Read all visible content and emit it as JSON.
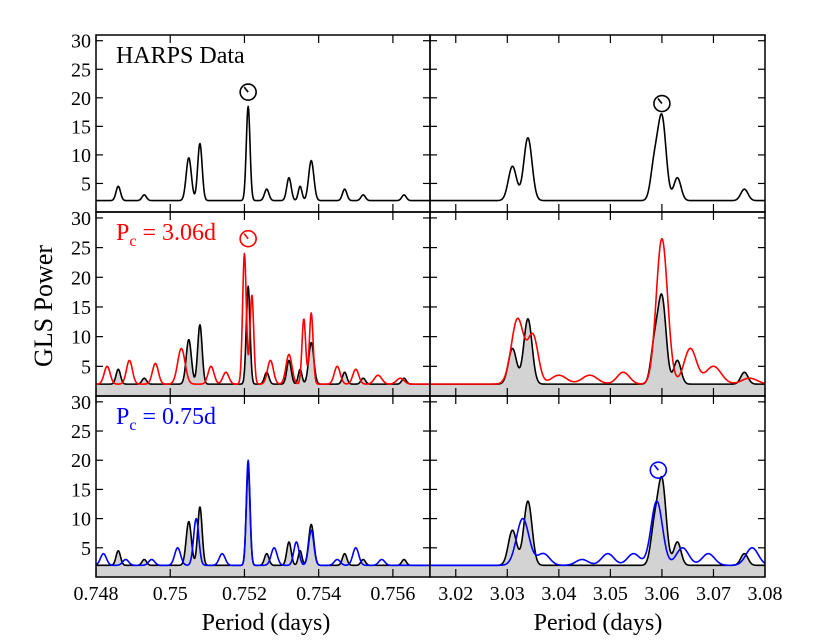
{
  "figure": {
    "ylabel": "GLS Power",
    "xlabel_left": "Period (days)",
    "xlabel_right": "Period (days)"
  },
  "colors": {
    "data": "#000000",
    "sim_3_06": "#ff0000",
    "sim_0_75": "#0000ff",
    "fill": "#d3d3d3"
  },
  "chart_data": [
    {
      "type": "line",
      "id": "top-left",
      "row": 0,
      "col": 0,
      "title": "HARPS Data",
      "xlim": [
        0.748,
        0.757
      ],
      "ylim": [
        0,
        31
      ],
      "yticks": [
        5,
        10,
        15,
        20,
        25,
        30
      ],
      "xticks": [
        0.748,
        0.75,
        0.752,
        0.754,
        0.756
      ],
      "xtick_labels": [
        "0.748",
        "0.75",
        "0.752",
        "0.754",
        "0.756"
      ],
      "show_xtick_labels": false,
      "series": [
        {
          "name": "HARPS Data",
          "color": "#000000",
          "fill": false,
          "peaks": [
            [
              0.7486,
              4.5,
              6e-05
            ],
            [
              0.7493,
              3,
              6e-05
            ],
            [
              0.7505,
              9.5,
              7e-05
            ],
            [
              0.7508,
              12,
              6e-05
            ],
            [
              0.7521,
              18.5,
              5e-05
            ],
            [
              0.7526,
              4,
              6e-05
            ],
            [
              0.7532,
              6,
              6e-05
            ],
            [
              0.7535,
              4.5,
              5e-05
            ],
            [
              0.7538,
              9,
              7e-05
            ],
            [
              0.7547,
              4,
              6e-05
            ],
            [
              0.7552,
              3,
              6e-05
            ],
            [
              0.7563,
              3,
              6e-05
            ]
          ]
        }
      ],
      "markers": [
        {
          "x": 0.7521,
          "y": 21,
          "color": "#000000"
        }
      ]
    },
    {
      "type": "line",
      "id": "top-right",
      "row": 0,
      "col": 1,
      "xlim": [
        3.015,
        3.08
      ],
      "ylim": [
        0,
        31
      ],
      "yticks": [
        5,
        10,
        15,
        20,
        25,
        30
      ],
      "xticks": [
        3.02,
        3.03,
        3.04,
        3.05,
        3.06,
        3.07,
        3.08
      ],
      "xtick_labels": [
        "3.02",
        "3.03",
        "3.04",
        "3.05",
        "3.06",
        "3.07",
        "3.08"
      ],
      "show_xtick_labels": false,
      "series": [
        {
          "name": "HARPS Data",
          "color": "#000000",
          "fill": false,
          "peaks": [
            [
              3.031,
              8,
              0.0008
            ],
            [
              3.034,
              13,
              0.0008
            ],
            [
              3.0585,
              8,
              0.0007
            ],
            [
              3.06,
              16.5,
              0.0008
            ],
            [
              3.063,
              6,
              0.0007
            ],
            [
              3.076,
              4,
              0.0007
            ]
          ]
        }
      ],
      "markers": [
        {
          "x": 3.06,
          "y": 19,
          "color": "#000000"
        }
      ]
    },
    {
      "type": "area",
      "id": "mid-left",
      "row": 1,
      "col": 0,
      "title": "P",
      "subscript": "c",
      "title_value": " = 3.06d",
      "title_color": "#ff0000",
      "xlim": [
        0.748,
        0.757
      ],
      "ylim": [
        0,
        31
      ],
      "yticks": [
        5,
        10,
        15,
        20,
        25,
        30
      ],
      "xticks": [
        0.748,
        0.75,
        0.752,
        0.754,
        0.756
      ],
      "xtick_labels": [
        "0.748",
        "0.75",
        "0.752",
        "0.754",
        "0.756"
      ],
      "show_xtick_labels": false,
      "series": [
        {
          "name": "HARPS Data",
          "color": "#000000",
          "fill": true,
          "peaks": [
            [
              0.7486,
              4.5,
              6e-05
            ],
            [
              0.7493,
              3,
              6e-05
            ],
            [
              0.7505,
              9.5,
              7e-05
            ],
            [
              0.7508,
              12,
              6e-05
            ],
            [
              0.7521,
              18.5,
              5e-05
            ],
            [
              0.7526,
              4,
              6e-05
            ],
            [
              0.7532,
              6,
              6e-05
            ],
            [
              0.7535,
              4.5,
              5e-05
            ],
            [
              0.7538,
              9,
              7e-05
            ],
            [
              0.7547,
              4,
              6e-05
            ],
            [
              0.7552,
              3,
              6e-05
            ],
            [
              0.7563,
              3,
              6e-05
            ]
          ]
        },
        {
          "name": "P_c = 3.06d",
          "color": "#ff0000",
          "fill": false,
          "peaks": [
            [
              0.7483,
              5,
              8e-05
            ],
            [
              0.7489,
              6,
              8e-05
            ],
            [
              0.7496,
              5.5,
              8e-05
            ],
            [
              0.7503,
              8,
              0.0001
            ],
            [
              0.7511,
              5,
              8e-05
            ],
            [
              0.7515,
              4,
              8e-05
            ],
            [
              0.752,
              24,
              5e-05
            ],
            [
              0.7522,
              17,
              5e-05
            ],
            [
              0.7527,
              6,
              8e-05
            ],
            [
              0.7532,
              7,
              8e-05
            ],
            [
              0.7536,
              13,
              5e-05
            ],
            [
              0.7538,
              14,
              5e-05
            ],
            [
              0.7545,
              5,
              8e-05
            ],
            [
              0.755,
              4.5,
              8e-05
            ],
            [
              0.7556,
              3.5,
              0.0001
            ],
            [
              0.7562,
              3,
              0.0001
            ]
          ]
        }
      ],
      "markers": [
        {
          "x": 0.7521,
          "y": 26.5,
          "color": "#ff0000"
        }
      ]
    },
    {
      "type": "area",
      "id": "mid-right",
      "row": 1,
      "col": 1,
      "xlim": [
        3.015,
        3.08
      ],
      "ylim": [
        0,
        31
      ],
      "yticks": [
        5,
        10,
        15,
        20,
        25,
        30
      ],
      "xticks": [
        3.02,
        3.03,
        3.04,
        3.05,
        3.06,
        3.07,
        3.08
      ],
      "xtick_labels": [
        "3.02",
        "3.03",
        "3.04",
        "3.05",
        "3.06",
        "3.07",
        "3.08"
      ],
      "show_xtick_labels": false,
      "series": [
        {
          "name": "HARPS Data",
          "color": "#000000",
          "fill": true,
          "peaks": [
            [
              3.031,
              8,
              0.0008
            ],
            [
              3.034,
              13,
              0.0008
            ],
            [
              3.0585,
              8,
              0.0007
            ],
            [
              3.06,
              16.5,
              0.0008
            ],
            [
              3.063,
              6,
              0.0007
            ],
            [
              3.076,
              4,
              0.0007
            ]
          ]
        },
        {
          "name": "P_c = 3.06d",
          "color": "#ff0000",
          "fill": false,
          "peaks": [
            [
              3.032,
              13,
              0.0012
            ],
            [
              3.035,
              10,
              0.001
            ],
            [
              3.04,
              3.5,
              0.0015
            ],
            [
              3.046,
              3.5,
              0.0015
            ],
            [
              3.0525,
              4,
              0.0012
            ],
            [
              3.06,
              26.5,
              0.0011
            ],
            [
              3.0655,
              8,
              0.0012
            ],
            [
              3.07,
              5,
              0.0015
            ],
            [
              3.077,
              3,
              0.0015
            ]
          ]
        }
      ],
      "markers": []
    },
    {
      "type": "area",
      "id": "bottom-left",
      "row": 2,
      "col": 0,
      "title": "P",
      "subscript": "c",
      "title_value": " = 0.75d",
      "title_color": "#0000ff",
      "xlim": [
        0.748,
        0.757
      ],
      "ylim": [
        0,
        31
      ],
      "yticks": [
        5,
        10,
        15,
        20,
        25,
        30
      ],
      "xticks": [
        0.748,
        0.75,
        0.752,
        0.754,
        0.756
      ],
      "xtick_labels": [
        "0.748",
        "0.75",
        "0.752",
        "0.754",
        "0.756"
      ],
      "show_xtick_labels": true,
      "series": [
        {
          "name": "HARPS Data",
          "color": "#000000",
          "fill": true,
          "peaks": [
            [
              0.7486,
              4.5,
              6e-05
            ],
            [
              0.7493,
              3,
              6e-05
            ],
            [
              0.7505,
              9.5,
              7e-05
            ],
            [
              0.7508,
              12,
              6e-05
            ],
            [
              0.7521,
              18.5,
              5e-05
            ],
            [
              0.7526,
              4,
              6e-05
            ],
            [
              0.7532,
              6,
              6e-05
            ],
            [
              0.7535,
              4.5,
              5e-05
            ],
            [
              0.7538,
              9,
              7e-05
            ],
            [
              0.7547,
              4,
              6e-05
            ],
            [
              0.7552,
              3,
              6e-05
            ],
            [
              0.7563,
              3,
              6e-05
            ]
          ]
        },
        {
          "name": "P_c = 0.75d",
          "color": "#0000ff",
          "fill": false,
          "peaks": [
            [
              0.7482,
              4,
              8e-05
            ],
            [
              0.7488,
              3,
              8e-05
            ],
            [
              0.7495,
              3,
              8e-05
            ],
            [
              0.7502,
              5,
              8e-05
            ],
            [
              0.7507,
              10,
              7e-05
            ],
            [
              0.7514,
              4,
              8e-05
            ],
            [
              0.7521,
              20,
              5e-05
            ],
            [
              0.7528,
              5,
              8e-05
            ],
            [
              0.7534,
              6,
              7e-05
            ],
            [
              0.7538,
              8,
              7e-05
            ],
            [
              0.7545,
              3,
              8e-05
            ],
            [
              0.755,
              5,
              8e-05
            ],
            [
              0.7557,
              3,
              8e-05
            ],
            [
              0.7565,
              2,
              0.0001
            ]
          ]
        }
      ],
      "markers": []
    },
    {
      "type": "area",
      "id": "bottom-right",
      "row": 2,
      "col": 1,
      "xlim": [
        3.015,
        3.08
      ],
      "ylim": [
        0,
        31
      ],
      "yticks": [
        5,
        10,
        15,
        20,
        25,
        30
      ],
      "xticks": [
        3.02,
        3.03,
        3.04,
        3.05,
        3.06,
        3.07,
        3.08
      ],
      "xtick_labels": [
        "3.02",
        "3.03",
        "3.04",
        "3.05",
        "3.06",
        "3.07",
        "3.08"
      ],
      "show_xtick_labels": true,
      "series": [
        {
          "name": "HARPS Data",
          "color": "#000000",
          "fill": true,
          "peaks": [
            [
              3.031,
              8,
              0.0008
            ],
            [
              3.034,
              13,
              0.0008
            ],
            [
              3.0585,
              8,
              0.0007
            ],
            [
              3.06,
              16.5,
              0.0008
            ],
            [
              3.063,
              6,
              0.0007
            ],
            [
              3.076,
              4,
              0.0007
            ]
          ]
        },
        {
          "name": "P_c = 0.75d",
          "color": "#0000ff",
          "fill": false,
          "peaks": [
            [
              3.033,
              10,
              0.0012
            ],
            [
              3.037,
              4,
              0.0012
            ],
            [
              3.0445,
              3,
              0.0012
            ],
            [
              3.0495,
              4,
              0.0012
            ],
            [
              3.0545,
              4,
              0.0012
            ],
            [
              3.059,
              13,
              0.0011
            ],
            [
              3.064,
              5,
              0.0012
            ],
            [
              3.069,
              4,
              0.0012
            ],
            [
              3.0775,
              5,
              0.0012
            ]
          ]
        }
      ],
      "markers": [
        {
          "x": 3.0593,
          "y": 18.3,
          "color": "#0000ff"
        }
      ]
    }
  ]
}
